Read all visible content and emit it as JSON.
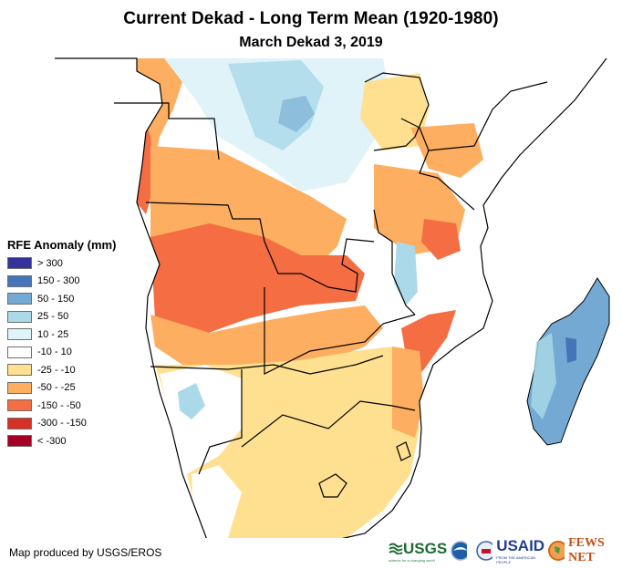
{
  "header": {
    "title": "Current Dekad - Long Term Mean (1920-1980)",
    "subtitle": "March Dekad 3, 2019"
  },
  "legend": {
    "title": "RFE Anomaly (mm)",
    "items": [
      {
        "label": "> 300",
        "color": "#333399"
      },
      {
        "label": "150 - 300",
        "color": "#4574b8"
      },
      {
        "label": "50 - 150",
        "color": "#73a9d2"
      },
      {
        "label": "25 - 50",
        "color": "#abd9e9"
      },
      {
        "label": "10 - 25",
        "color": "#e0f3f8"
      },
      {
        "label": "-10 - 10",
        "color": "#ffffff"
      },
      {
        "label": "-25 - -10",
        "color": "#fee090"
      },
      {
        "label": "-50 - -25",
        "color": "#fdae61"
      },
      {
        "label": "-150 - -50",
        "color": "#f46d43"
      },
      {
        "label": "-300 - -150",
        "color": "#d73027"
      },
      {
        "label": "< -300",
        "color": "#a50026"
      }
    ]
  },
  "footer": {
    "credit": "Map produced by USGS/EROS",
    "logos": {
      "usgs": "USGS",
      "usgs_tagline": "science for a changing world",
      "usaid": "USAID",
      "usaid_tagline": "FROM THE AMERICAN PEOPLE",
      "fewsnet": "FEWS NET"
    }
  },
  "colors": {
    "border": "#000000",
    "ocean": "#ffffff"
  }
}
